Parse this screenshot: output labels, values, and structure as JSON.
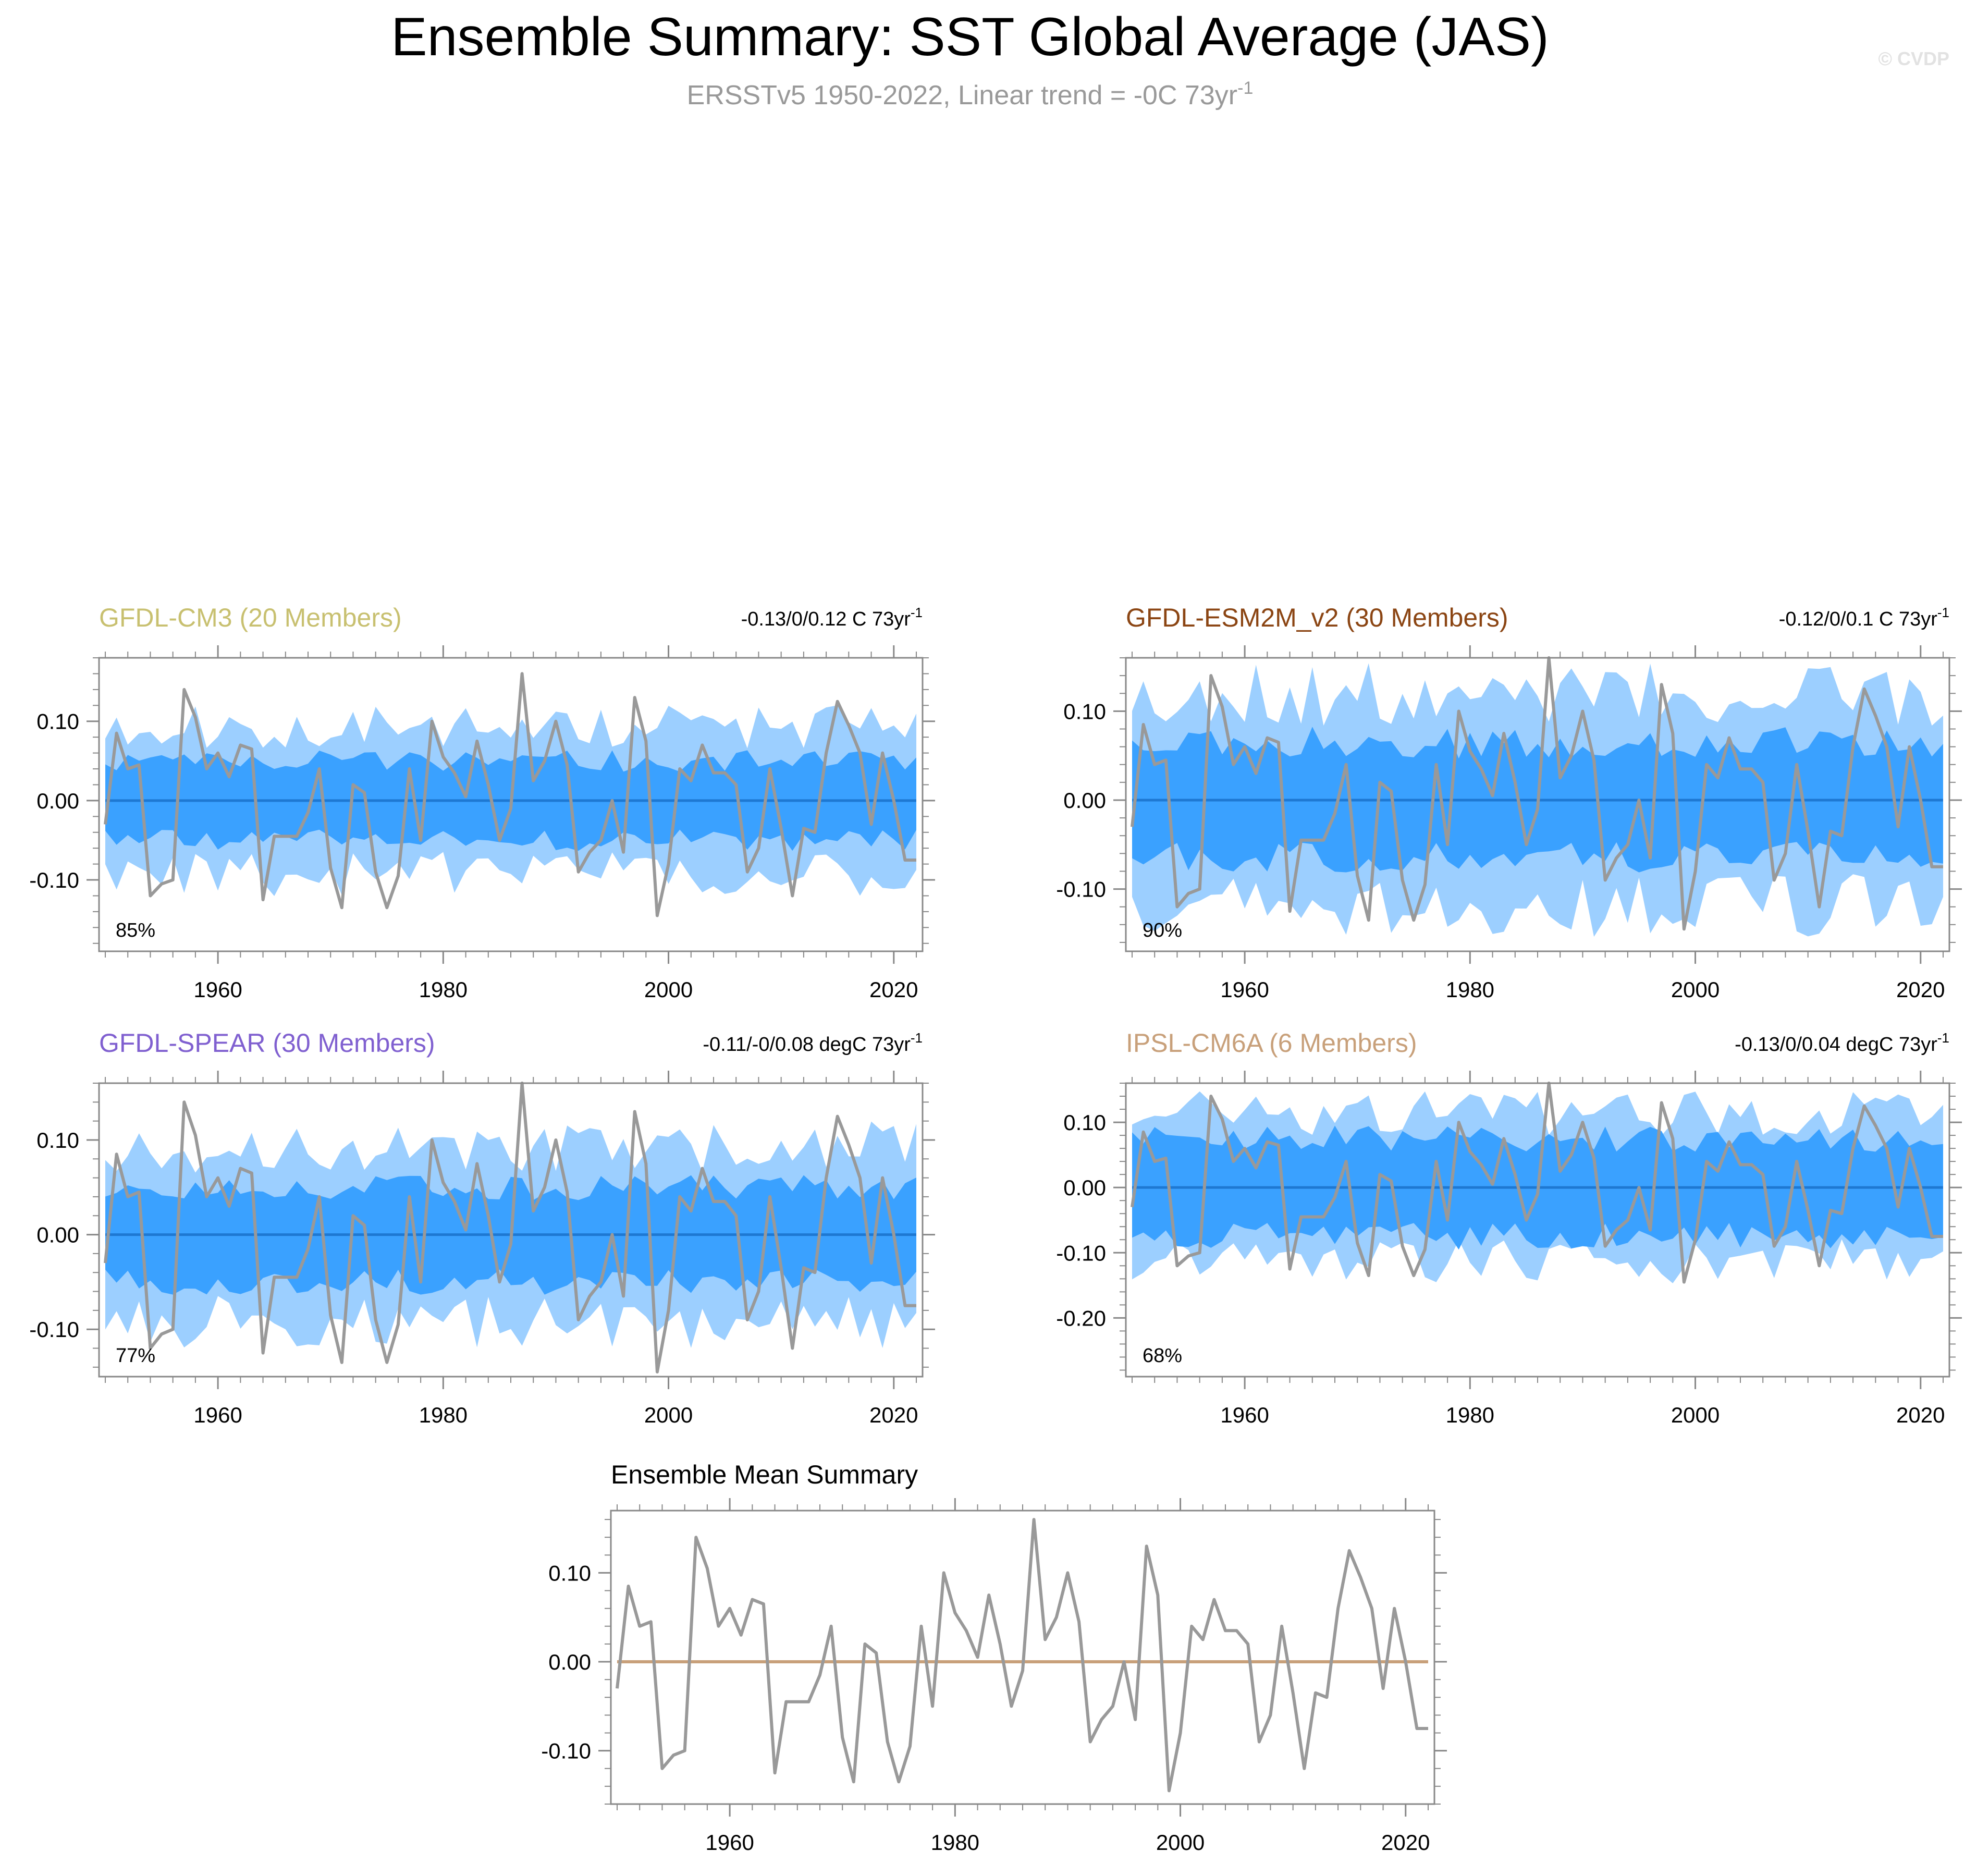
{
  "header": {
    "title": "Ensemble Summary: SST Global Average (JAS)",
    "subtitle_main": "ERSSTv5 1950-2022, Linear trend = -0C 73yr",
    "subtitle_sup": "-1",
    "watermark": "© CVDP"
  },
  "colors": {
    "outer_band": "#9ccfff",
    "inner_band": "#3aa1ff",
    "ensemble_mean": "#1e78d2",
    "observations": "#999999",
    "summary_mean": "#c8a07a",
    "title_text": "#000000",
    "subtitle_text": "#999999"
  },
  "chart_data": {
    "type": "line",
    "x_start": 1950,
    "x_end": 2022,
    "observations": {
      "name": "ERSSTv5",
      "values": [
        -0.03,
        0.085,
        0.04,
        0.045,
        -0.12,
        -0.105,
        -0.1,
        0.14,
        0.105,
        0.04,
        0.06,
        0.03,
        0.07,
        0.065,
        -0.125,
        -0.045,
        -0.045,
        -0.045,
        -0.015,
        0.04,
        -0.085,
        -0.135,
        0.02,
        0.01,
        -0.09,
        -0.135,
        -0.095,
        0.04,
        -0.05,
        0.1,
        0.055,
        0.035,
        0.005,
        0.075,
        0.02,
        -0.05,
        -0.01,
        0.16,
        0.025,
        0.05,
        0.1,
        0.045,
        -0.09,
        -0.065,
        -0.05,
        0.0,
        -0.065,
        0.13,
        0.075,
        -0.145,
        -0.08,
        0.04,
        0.025,
        0.07,
        0.035,
        0.035,
        0.02,
        -0.09,
        -0.06,
        0.04,
        -0.035,
        -0.12,
        -0.035,
        -0.04,
        0.06,
        0.125,
        0.095,
        0.06,
        -0.03,
        0.06,
        0.0,
        -0.075,
        -0.075
      ]
    },
    "panels": [
      {
        "id": "gfdl-cm3",
        "title": "GFDL-CM3 (20 Members)",
        "title_color": "#c8c070",
        "trend_label": "-0.13/0/0.12 C 73yr",
        "trend_sup": "-1",
        "percent": "85%",
        "ylim": [
          -0.19,
          0.18
        ],
        "yticks": [
          0.1,
          0.0,
          -0.1
        ],
        "ytick_labels": [
          "0.10",
          "0.00",
          "-0.10"
        ],
        "band_outer": 0.09,
        "band_inner": 0.05,
        "seed": 11
      },
      {
        "id": "gfdl-esm2m",
        "title": "GFDL-ESM2M_v2 (30 Members)",
        "title_color": "#8b4513",
        "trend_label": "-0.12/0/0.1 C 73yr",
        "trend_sup": "-1",
        "percent": "90%",
        "ylim": [
          -0.17,
          0.16
        ],
        "yticks": [
          0.1,
          0.0,
          -0.1
        ],
        "ytick_labels": [
          "0.10",
          "0.00",
          "-0.10"
        ],
        "band_outer": 0.115,
        "band_inner": 0.065,
        "seed": 23
      },
      {
        "id": "gfdl-spear",
        "title": "GFDL-SPEAR (30 Members)",
        "title_color": "#8060d0",
        "trend_label": "-0.11/-0/0.08 degC 73yr",
        "trend_sup": "-1",
        "percent": "77%",
        "ylim": [
          -0.15,
          0.16
        ],
        "yticks": [
          0.1,
          0.0,
          -0.1
        ],
        "ytick_labels": [
          "0.10",
          "0.00",
          "-0.10"
        ],
        "band_outer": 0.09,
        "band_inner": 0.05,
        "seed": 37
      },
      {
        "id": "ipsl-cm6a",
        "title": "IPSL-CM6A (6 Members)",
        "title_color": "#c8a07a",
        "trend_label": "-0.13/0/0.04 degC 73yr",
        "trend_sup": "-1",
        "percent": "68%",
        "ylim": [
          -0.29,
          0.16
        ],
        "yticks": [
          0.1,
          0.0,
          -0.1,
          -0.2
        ],
        "ytick_labels": [
          "0.10",
          "0.00",
          "-0.10",
          "-0.20"
        ],
        "band_outer": 0.11,
        "band_inner": 0.075,
        "seed": 51
      }
    ],
    "summary": {
      "title": "Ensemble Mean Summary",
      "ylim": [
        -0.16,
        0.17
      ],
      "yticks": [
        0.1,
        0.0,
        -0.1
      ],
      "ytick_labels": [
        "0.10",
        "0.00",
        "-0.10"
      ]
    },
    "xticks": [
      1960,
      1980,
      2000,
      2020
    ],
    "xtick_labels": [
      "1960",
      "1980",
      "2000",
      "2020"
    ]
  }
}
